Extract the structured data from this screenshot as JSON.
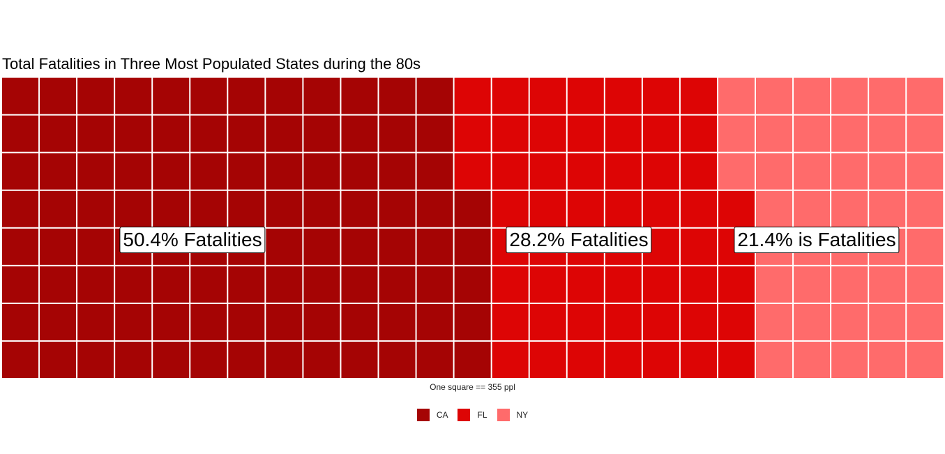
{
  "chart_data": {
    "type": "waffle",
    "title": "Total Fatalities in Three Most Populated States during the 80s",
    "caption": "One square == 355 ppl",
    "rows": 8,
    "categories": [
      "CA",
      "FL",
      "NY"
    ],
    "values": [
      101,
      56,
      43
    ],
    "colors": [
      "#A50404",
      "#DD0505",
      "#FF6B6B"
    ],
    "annotations": [
      {
        "text": "50.4% Fatalities",
        "category": "CA"
      },
      {
        "text": "28.2% Fatalities",
        "category": "FL"
      },
      {
        "text": "21.4% is Fatalities",
        "category": "NY"
      }
    ],
    "legend": [
      {
        "label": "CA",
        "color": "#A50404"
      },
      {
        "label": "FL",
        "color": "#DD0505"
      },
      {
        "label": "NY",
        "color": "#FF6B6B"
      }
    ]
  }
}
